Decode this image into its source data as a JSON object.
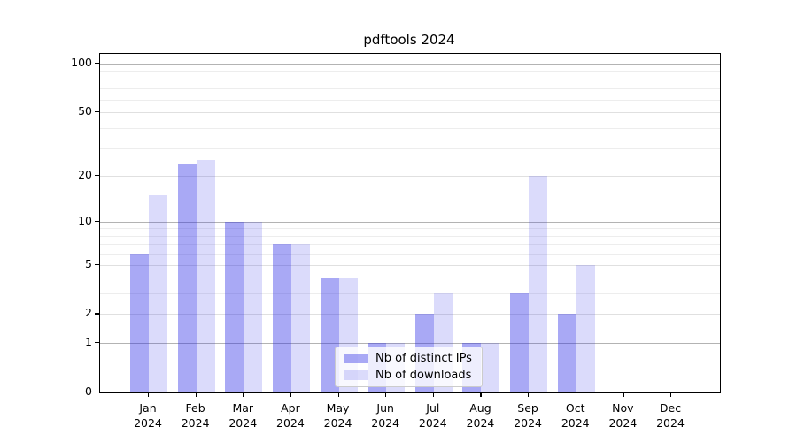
{
  "chart_data": {
    "type": "bar",
    "title": "pdftools 2024",
    "categories": [
      "Jan",
      "Feb",
      "Mar",
      "Apr",
      "May",
      "Jun",
      "Jul",
      "Aug",
      "Sep",
      "Oct",
      "Nov",
      "Dec"
    ],
    "year": "2024",
    "series": [
      {
        "name": "Nb of distinct IPs",
        "color": "rgba(40,40,230,0.40)",
        "values": [
          6,
          24,
          10,
          7,
          4,
          1,
          2,
          1,
          3,
          2,
          0,
          0
        ]
      },
      {
        "name": "Nb of downloads",
        "color": "rgba(40,40,230,0.17)",
        "values": [
          15,
          25,
          10,
          7,
          4,
          1,
          3,
          1,
          20,
          5,
          0,
          0
        ]
      }
    ],
    "y_axis": {
      "scale": "log1p",
      "labeled_ticks": [
        0,
        1,
        2,
        5,
        10,
        20,
        50,
        100
      ],
      "emphasized_gridlines": [
        1,
        10,
        100
      ],
      "minor_gridlines": [
        3,
        4,
        6,
        7,
        8,
        9,
        30,
        40,
        60,
        70,
        80,
        90
      ],
      "ylim": [
        0,
        116
      ]
    },
    "legend": {
      "position": "lower-center-inside"
    }
  },
  "colors": {
    "bar_dark": "rgba(40,40,230,0.40)",
    "bar_light": "rgba(40,40,230,0.17)",
    "grid_strong": "#b3b3b3",
    "grid_medium": "#e0e0e0",
    "grid_faint": "#ededed",
    "frame": "#000000",
    "legend_border": "#cccccc"
  }
}
